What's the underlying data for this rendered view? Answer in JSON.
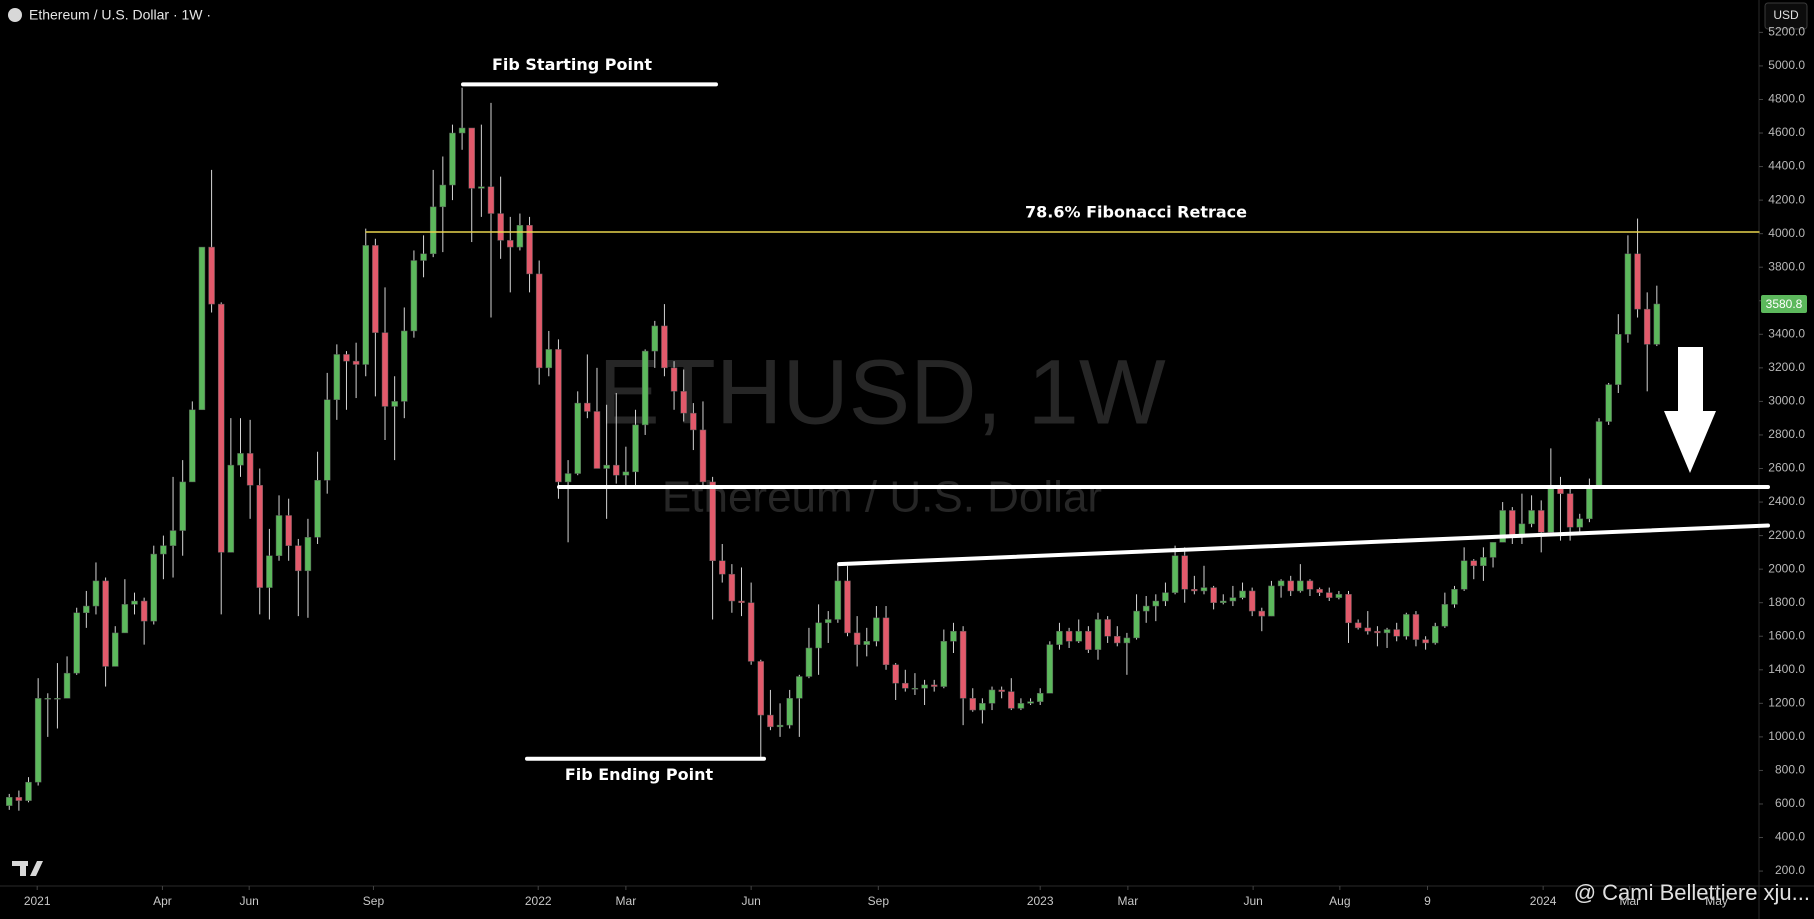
{
  "header": {
    "title": "Ethereum / U.S. Dollar · 1W ·",
    "currency": "USD"
  },
  "watermark": {
    "symbol": "ETHUSD, 1W",
    "name": "Ethereum / U.S. Dollar"
  },
  "credit": "@ Cami Bellettiere xju...",
  "chart_data": {
    "type": "candlestick",
    "open": [
      590,
      640,
      620,
      730,
      1230,
      1230,
      1230,
      1380,
      1740,
      1780,
      1930,
      1420,
      1620,
      1790,
      1810,
      1690,
      2090,
      2140,
      2230,
      2520,
      2950,
      3920,
      3580,
      2100,
      2620,
      2690,
      2500,
      1890,
      2080,
      2320,
      2140,
      1990,
      2190,
      2530,
      3010,
      3280,
      3240,
      3220,
      3930,
      3410,
      2970,
      3000,
      3420,
      3840,
      3880,
      4160,
      4290,
      4600,
      4630,
      4270,
      4280,
      4120,
      3960,
      3920,
      4050,
      3760,
      3200,
      3310,
      2520,
      2570,
      2990,
      2940,
      2600,
      2620,
      2560,
      2580,
      2860,
      3300,
      3450,
      3200,
      3060,
      2930,
      2830,
      2520,
      2050,
      1970,
      1810,
      1800,
      1450,
      1130,
      1060,
      1070,
      1230,
      1360,
      1530,
      1680,
      1700,
      1930,
      1620,
      1550,
      1570,
      1710,
      1430,
      1320,
      1290,
      1290,
      1310,
      1300,
      1570,
      1630,
      1230,
      1160,
      1200,
      1280,
      1270,
      1170,
      1200,
      1210,
      1260,
      1550,
      1630,
      1570,
      1630,
      1520,
      1700,
      1600,
      1560,
      1590,
      1750,
      1780,
      1810,
      1860,
      2080,
      1880,
      1870,
      1890,
      1800,
      1810,
      1830,
      1870,
      1750,
      1720,
      1900,
      1930,
      1870,
      1930,
      1880,
      1860,
      1830,
      1850,
      1680,
      1650,
      1630,
      1620,
      1640,
      1600,
      1730,
      1580,
      1560,
      1660,
      1790,
      1880,
      2050,
      2020,
      2070,
      2160,
      2350,
      2200,
      2270,
      2350,
      2220,
      2480,
      2450,
      2250,
      2300,
      2500,
      2880,
      3100,
      3400,
      3880,
      3550,
      3340
    ],
    "high": [
      660,
      680,
      760,
      1350,
      1260,
      1440,
      1480,
      1770,
      1870,
      2040,
      1950,
      1660,
      1940,
      1860,
      1830,
      2140,
      2200,
      2550,
      2650,
      3000,
      3920,
      4380,
      3590,
      2900,
      2900,
      2890,
      2600,
      2240,
      2440,
      2420,
      2180,
      2300,
      2700,
      3170,
      3340,
      3300,
      3350,
      4030,
      3970,
      3680,
      3150,
      3560,
      3900,
      3990,
      4380,
      4460,
      4650,
      4870,
      4630,
      4650,
      4780,
      4340,
      4100,
      4120,
      4100,
      3840,
      3420,
      3370,
      2650,
      3060,
      3280,
      3200,
      2980,
      3050,
      2730,
      2950,
      3310,
      3480,
      3580,
      3240,
      3190,
      2990,
      3000,
      2550,
      2150,
      2030,
      2010,
      1920,
      1460,
      1280,
      1200,
      1280,
      1370,
      1650,
      1790,
      1750,
      2030,
      2020,
      1720,
      1650,
      1780,
      1780,
      1440,
      1400,
      1380,
      1340,
      1340,
      1640,
      1680,
      1660,
      1290,
      1230,
      1300,
      1300,
      1350,
      1230,
      1230,
      1290,
      1570,
      1680,
      1650,
      1700,
      1660,
      1740,
      1720,
      1660,
      1620,
      1850,
      1840,
      1850,
      1920,
      2140,
      2130,
      1960,
      2020,
      1900,
      1850,
      1900,
      1920,
      1890,
      1770,
      1930,
      1940,
      1960,
      2030,
      1940,
      1890,
      1890,
      1870,
      1870,
      1700,
      1750,
      1660,
      1650,
      1680,
      1740,
      1750,
      1600,
      1680,
      1860,
      1900,
      2130,
      2060,
      2130,
      2160,
      2400,
      2370,
      2450,
      2440,
      2410,
      2720,
      2550,
      2500,
      2330,
      2540,
      2900,
      3110,
      3520,
      3990,
      4090,
      3650,
      3690
    ],
    "low": [
      565,
      560,
      610,
      710,
      1000,
      1050,
      1230,
      1370,
      1650,
      1730,
      1300,
      1420,
      1620,
      1730,
      1550,
      1670,
      1940,
      1950,
      2080,
      2520,
      2950,
      3530,
      1730,
      2100,
      2550,
      2300,
      1730,
      1700,
      2050,
      2050,
      1720,
      1710,
      2150,
      2450,
      2890,
      2950,
      3020,
      3150,
      3030,
      2770,
      2650,
      2900,
      3380,
      3740,
      3860,
      3890,
      4200,
      4500,
      3950,
      4100,
      3500,
      3850,
      3650,
      3900,
      3650,
      3100,
      3150,
      2420,
      2160,
      2560,
      2900,
      2600,
      2300,
      2510,
      2500,
      2500,
      2800,
      3200,
      3150,
      2950,
      2880,
      2710,
      2500,
      1700,
      1920,
      1740,
      1720,
      1430,
      880,
      1040,
      1000,
      1050,
      1000,
      1350,
      1370,
      1560,
      1680,
      1600,
      1420,
      1480,
      1540,
      1400,
      1220,
      1270,
      1250,
      1190,
      1270,
      1290,
      1500,
      1070,
      1150,
      1080,
      1160,
      1230,
      1160,
      1160,
      1190,
      1190,
      1260,
      1520,
      1530,
      1560,
      1500,
      1460,
      1560,
      1540,
      1370,
      1580,
      1680,
      1690,
      1780,
      1850,
      1800,
      1850,
      1850,
      1760,
      1790,
      1780,
      1820,
      1720,
      1630,
      1720,
      1830,
      1840,
      1860,
      1840,
      1840,
      1810,
      1820,
      1560,
      1640,
      1610,
      1540,
      1530,
      1570,
      1580,
      1540,
      1520,
      1550,
      1650,
      1770,
      1870,
      1940,
      1930,
      2010,
      2160,
      2150,
      2150,
      2250,
      2100,
      2200,
      2170,
      2170,
      2220,
      2280,
      2490,
      2860,
      3050,
      3350,
      3500,
      3060,
      3330
    ],
    "close": [
      640,
      620,
      730,
      1230,
      1230,
      1230,
      1380,
      1740,
      1780,
      1930,
      1420,
      1620,
      1790,
      1810,
      1690,
      2090,
      2140,
      2230,
      2520,
      2950,
      3920,
      3580,
      2100,
      2620,
      2690,
      2500,
      1890,
      2080,
      2320,
      2140,
      1990,
      2190,
      2530,
      3010,
      3280,
      3240,
      3220,
      3930,
      3410,
      2970,
      3000,
      3420,
      3840,
      3880,
      4160,
      4290,
      4600,
      4630,
      4270,
      4280,
      4120,
      3960,
      3920,
      4050,
      3760,
      3200,
      3310,
      2520,
      2570,
      2990,
      2940,
      2600,
      2620,
      2560,
      2580,
      2860,
      3300,
      3450,
      3200,
      3060,
      2930,
      2830,
      2520,
      2050,
      1970,
      1810,
      1800,
      1450,
      1130,
      1060,
      1070,
      1230,
      1360,
      1530,
      1680,
      1700,
      1930,
      1620,
      1550,
      1570,
      1710,
      1430,
      1320,
      1290,
      1290,
      1310,
      1300,
      1570,
      1630,
      1230,
      1160,
      1200,
      1280,
      1270,
      1170,
      1200,
      1210,
      1260,
      1550,
      1630,
      1570,
      1630,
      1520,
      1700,
      1600,
      1560,
      1590,
      1750,
      1780,
      1810,
      1860,
      2080,
      1880,
      1870,
      1890,
      1800,
      1810,
      1830,
      1870,
      1750,
      1720,
      1900,
      1930,
      1870,
      1930,
      1880,
      1860,
      1830,
      1850,
      1680,
      1650,
      1630,
      1620,
      1640,
      1600,
      1730,
      1580,
      1560,
      1660,
      1790,
      1880,
      2050,
      2020,
      2070,
      2160,
      2350,
      2200,
      2270,
      2350,
      2220,
      2480,
      2450,
      2250,
      2300,
      2500,
      2880,
      3100,
      3400,
      3880,
      3550,
      3340,
      3580.8
    ],
    "colors": {
      "up": "#5cb85c",
      "down": "#e25a6b",
      "wick": "#d4d4d4"
    },
    "xlim": [
      -0.96,
      181.5
    ],
    "xticks": [
      {
        "value": 2.9,
        "label": "2021"
      },
      {
        "value": 15.9,
        "label": "Apr"
      },
      {
        "value": 24.9,
        "label": "Jun"
      },
      {
        "value": 37.8,
        "label": "Sep"
      },
      {
        "value": 54.9,
        "label": "2022"
      },
      {
        "value": 64.0,
        "label": "Mar"
      },
      {
        "value": 77.0,
        "label": "Jun"
      },
      {
        "value": 90.2,
        "label": "Sep"
      },
      {
        "value": 107.0,
        "label": "2023"
      },
      {
        "value": 116.1,
        "label": "Mar"
      },
      {
        "value": 129.1,
        "label": "Jun"
      },
      {
        "value": 138.1,
        "label": "Aug"
      },
      {
        "value": 147.2,
        "label": "9"
      },
      {
        "value": 159.2,
        "label": "2024"
      },
      {
        "value": 168.2,
        "label": "Mar"
      },
      {
        "value": 177.2,
        "label": "May"
      }
    ],
    "ylim": [
      117,
      5393
    ],
    "yticks": [
      {
        "value": 200,
        "label": "200.0"
      },
      {
        "value": 400,
        "label": "400.0"
      },
      {
        "value": 600,
        "label": "600.0"
      },
      {
        "value": 800,
        "label": "800.0"
      },
      {
        "value": 1000,
        "label": "1000.0"
      },
      {
        "value": 1200,
        "label": "1200.0"
      },
      {
        "value": 1400,
        "label": "1400.0"
      },
      {
        "value": 1600,
        "label": "1600.0"
      },
      {
        "value": 1800,
        "label": "1800.0"
      },
      {
        "value": 2000,
        "label": "2000.0"
      },
      {
        "value": 2200,
        "label": "2200.0"
      },
      {
        "value": 2400,
        "label": "2400.0"
      },
      {
        "value": 2600,
        "label": "2600.0"
      },
      {
        "value": 2800,
        "label": "2800.0"
      },
      {
        "value": 3000,
        "label": "3000.0"
      },
      {
        "value": 3200,
        "label": "3200.0"
      },
      {
        "value": 3400,
        "label": "3400.0"
      },
      {
        "value": 3600,
        "label": "3600.0"
      },
      {
        "value": 3800,
        "label": "3800.0"
      },
      {
        "value": 4000,
        "label": "4000.0"
      },
      {
        "value": 4200,
        "label": "4200.0"
      },
      {
        "value": 4400,
        "label": "4400.0"
      },
      {
        "value": 4600,
        "label": "4600.0"
      },
      {
        "value": 4800,
        "label": "4800.0"
      },
      {
        "value": 5000,
        "label": "5000.0"
      },
      {
        "value": 5200,
        "label": "5200.0"
      }
    ],
    "grid": false,
    "annotations": [
      {
        "text": "Fib Starting Point",
        "value": 4890
      },
      {
        "text": "Fib Ending Point",
        "value": 870
      },
      {
        "text": "78.6% Fibonacci Retrace",
        "value": 4010,
        "color": "#e8d44d"
      }
    ],
    "levels": [
      2490
    ],
    "trendline": [
      2030,
      2260
    ]
  }
}
